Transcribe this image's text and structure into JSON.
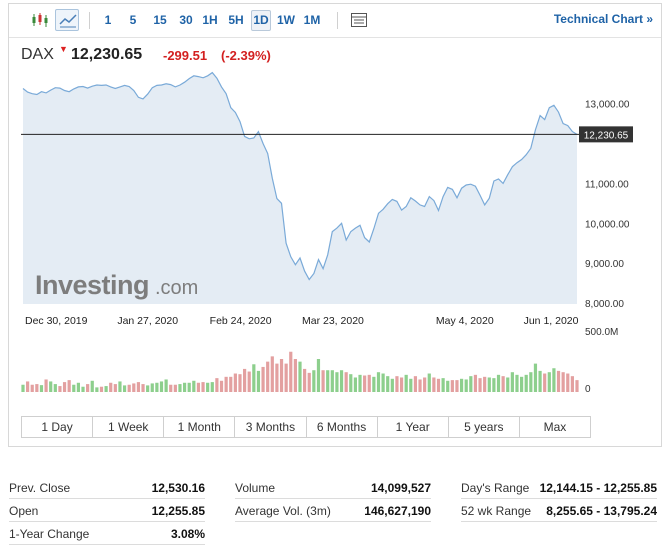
{
  "toolbar": {
    "intervals": [
      {
        "label": "1",
        "active": false
      },
      {
        "label": "5",
        "active": false
      },
      {
        "label": "15",
        "active": false
      },
      {
        "label": "30",
        "active": false
      },
      {
        "label": "1H",
        "active": false
      },
      {
        "label": "5H",
        "active": false
      },
      {
        "label": "1D",
        "active": true
      },
      {
        "label": "1W",
        "active": false
      },
      {
        "label": "1M",
        "active": false
      }
    ],
    "technical_link": "Technical Chart »"
  },
  "quote": {
    "symbol": "DAX",
    "last": "12,230.65",
    "change": "-299.51",
    "change_pct": "(-2.39%)",
    "change_color": "#d32020"
  },
  "watermark": {
    "brand": "Investing",
    "suffix": ".com"
  },
  "range_tabs": [
    "1 Day",
    "1 Week",
    "1 Month",
    "3 Months",
    "6 Months",
    "1 Year",
    "5 years",
    "Max"
  ],
  "chart_data": {
    "type": "area",
    "x_ticks": [
      {
        "label": "Dec 30, 2019",
        "index": 0
      },
      {
        "label": "Jan 27, 2020",
        "index": 20
      },
      {
        "label": "Feb 24, 2020",
        "index": 40
      },
      {
        "label": "Mar 23, 2020",
        "index": 60
      },
      {
        "label": "May 4, 2020",
        "index": 89
      },
      {
        "label": "Jun 1, 2020",
        "index": 108
      }
    ],
    "y_ticks": [
      "8,000.00",
      "9,000.00",
      "10,000.00",
      "11,000.00",
      "13,000.00"
    ],
    "y_tick_values": [
      8000,
      9000,
      10000,
      11000,
      13000
    ],
    "ylim": [
      7975,
      13795
    ],
    "last_value": 12230.65,
    "last_label": "12,230.65",
    "values": [
      13380,
      13290,
      13250,
      13230,
      13300,
      13270,
      13340,
      13400,
      13390,
      13330,
      13300,
      13370,
      13420,
      13430,
      13390,
      13440,
      13470,
      13460,
      13470,
      13420,
      13380,
      13420,
      13460,
      13430,
      13330,
      13160,
      13120,
      13240,
      13400,
      13460,
      13470,
      13500,
      13480,
      13420,
      13470,
      13540,
      13630,
      13700,
      13680,
      13650,
      13700,
      13780,
      13640,
      13420,
      13250,
      12900,
      12780,
      12550,
      12180,
      12120,
      12140,
      12300,
      12000,
      11750,
      11130,
      10620,
      10500,
      9500,
      9160,
      8960,
      9130,
      8800,
      8590,
      8740,
      9090,
      8860,
      9210,
      9790,
      9880,
      10000,
      9580,
      9790,
      9880,
      9950,
      9640,
      9530,
      9870,
      10250,
      10350,
      10490,
      10600,
      10550,
      10330,
      10420,
      10640,
      10560,
      10460,
      10420,
      10670,
      10570,
      10320,
      10670,
      10900,
      10850,
      10640,
      10880,
      10960,
      10980,
      10930,
      10700,
      10460,
      10630,
      11060,
      11110,
      11000,
      11220,
      11420,
      11520,
      11600,
      11720,
      11880,
      12350,
      12700,
      12600,
      12900,
      12960,
      12790,
      12500,
      12450,
      12300,
      12230.65
    ],
    "volume_label": "500.0M",
    "volume_zero_label": "0",
    "volume_max": 500,
    "volumes": [
      55,
      80,
      55,
      60,
      52,
      95,
      80,
      60,
      45,
      75,
      90,
      55,
      70,
      40,
      60,
      85,
      35,
      40,
      45,
      70,
      60,
      80,
      50,
      55,
      65,
      75,
      60,
      50,
      65,
      70,
      80,
      95,
      55,
      55,
      60,
      70,
      70,
      85,
      70,
      75,
      70,
      75,
      105,
      85,
      115,
      115,
      140,
      135,
      175,
      155,
      210,
      160,
      190,
      230,
      270,
      215,
      250,
      215,
      305,
      250,
      230,
      175,
      145,
      165,
      250,
      165,
      165,
      165,
      150,
      165,
      150,
      135,
      110,
      130,
      125,
      130,
      115,
      150,
      140,
      120,
      100,
      120,
      110,
      130,
      100,
      120,
      95,
      110,
      140,
      110,
      100,
      105,
      85,
      90,
      90,
      100,
      95,
      120,
      130,
      105,
      115,
      110,
      105,
      130,
      120,
      110,
      150,
      130,
      115,
      130,
      150,
      215,
      160,
      140,
      150,
      180,
      160,
      150,
      140,
      120,
      90
    ],
    "volume_colors": [
      "#8dcf8d",
      "#e3a0a0"
    ],
    "line_color": "#7aaad8",
    "area_color": "#e4ecf4"
  },
  "stats": [
    [
      {
        "label": "Prev. Close",
        "value": "12,530.16"
      },
      {
        "label": "Open",
        "value": "12,255.85"
      },
      {
        "label": "1-Year Change",
        "value": "3.08%"
      }
    ],
    [
      {
        "label": "Volume",
        "value": "14,099,527"
      },
      {
        "label": "Average Vol. (3m)",
        "value": "146,627,190"
      }
    ],
    [
      {
        "label": "Day's Range",
        "value": "12,144.15 - 12,255.85"
      },
      {
        "label": "52 wk Range",
        "value": "8,255.65 - 13,795.24"
      }
    ]
  ]
}
